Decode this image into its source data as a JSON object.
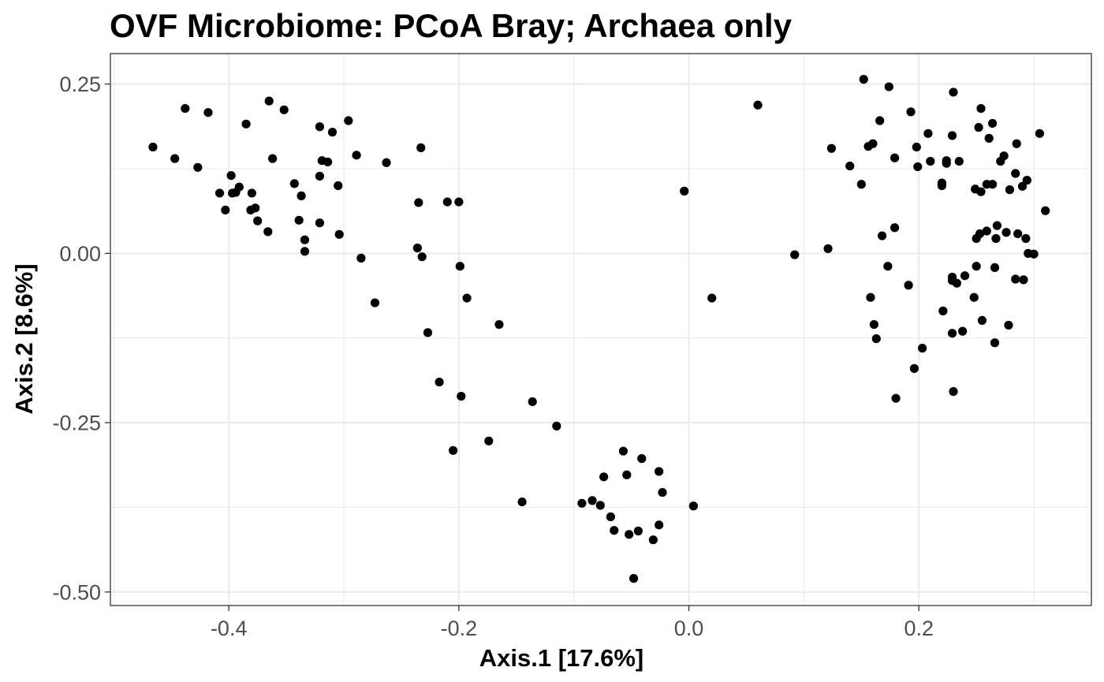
{
  "chart_data": {
    "type": "scatter",
    "title": "OVF Microbiome: PCoA Bray; Archaea only",
    "xlabel": "Axis.1   [17.6%]",
    "ylabel": "Axis.2   [8.6%]",
    "xlim": [
      -0.503,
      0.35
    ],
    "ylim": [
      -0.52,
      0.295
    ],
    "x_ticks": [
      -0.4,
      -0.2,
      0.0,
      0.2
    ],
    "x_tick_labels": [
      "-0.4",
      "-0.2",
      "0.0",
      "0.2"
    ],
    "y_ticks": [
      -0.5,
      -0.25,
      0.0,
      0.25
    ],
    "y_tick_labels": [
      "-0.50",
      "-0.25",
      "0.00",
      "0.25"
    ],
    "grid": true,
    "point_color": "#000000",
    "points": [
      [
        -0.466,
        0.157
      ],
      [
        -0.447,
        0.14
      ],
      [
        -0.438,
        0.214
      ],
      [
        -0.427,
        0.127
      ],
      [
        -0.418,
        0.208
      ],
      [
        -0.408,
        0.089
      ],
      [
        -0.403,
        0.064
      ],
      [
        -0.398,
        0.115
      ],
      [
        -0.397,
        0.089
      ],
      [
        -0.394,
        0.09
      ],
      [
        -0.391,
        0.098
      ],
      [
        -0.385,
        0.191
      ],
      [
        -0.381,
        0.064
      ],
      [
        -0.38,
        0.089
      ],
      [
        -0.377,
        0.067
      ],
      [
        -0.375,
        0.048
      ],
      [
        -0.366,
        0.032
      ],
      [
        -0.365,
        0.225
      ],
      [
        -0.362,
        0.14
      ],
      [
        -0.352,
        0.212
      ],
      [
        -0.343,
        0.103
      ],
      [
        -0.339,
        0.049
      ],
      [
        -0.337,
        0.085
      ],
      [
        -0.334,
        0.02
      ],
      [
        -0.334,
        0.003
      ],
      [
        -0.321,
        0.187
      ],
      [
        -0.321,
        0.114
      ],
      [
        -0.321,
        0.045
      ],
      [
        -0.319,
        0.137
      ],
      [
        -0.314,
        0.135
      ],
      [
        -0.31,
        0.179
      ],
      [
        -0.305,
        0.1
      ],
      [
        -0.304,
        0.028
      ],
      [
        -0.296,
        0.196
      ],
      [
        -0.289,
        0.145
      ],
      [
        -0.285,
        -0.007
      ],
      [
        -0.273,
        -0.073
      ],
      [
        -0.263,
        0.134
      ],
      [
        -0.236,
        0.008
      ],
      [
        -0.235,
        0.075
      ],
      [
        -0.233,
        0.156
      ],
      [
        -0.232,
        -0.005
      ],
      [
        -0.227,
        -0.117
      ],
      [
        -0.217,
        -0.19
      ],
      [
        -0.21,
        0.076
      ],
      [
        -0.205,
        -0.291
      ],
      [
        -0.2,
        0.076
      ],
      [
        -0.199,
        -0.019
      ],
      [
        -0.198,
        -0.211
      ],
      [
        -0.193,
        -0.066
      ],
      [
        -0.174,
        -0.277
      ],
      [
        -0.165,
        -0.105
      ],
      [
        -0.145,
        -0.367
      ],
      [
        -0.136,
        -0.219
      ],
      [
        -0.115,
        -0.255
      ],
      [
        -0.093,
        -0.369
      ],
      [
        -0.084,
        -0.365
      ],
      [
        -0.077,
        -0.372
      ],
      [
        -0.074,
        -0.33
      ],
      [
        -0.068,
        -0.389
      ],
      [
        -0.065,
        -0.409
      ],
      [
        -0.057,
        -0.292
      ],
      [
        -0.054,
        -0.327
      ],
      [
        -0.052,
        -0.415
      ],
      [
        -0.048,
        -0.48
      ],
      [
        -0.044,
        -0.41
      ],
      [
        -0.041,
        -0.303
      ],
      [
        -0.031,
        -0.423
      ],
      [
        -0.026,
        -0.322
      ],
      [
        -0.026,
        -0.401
      ],
      [
        -0.023,
        -0.353
      ],
      [
        -0.004,
        0.092
      ],
      [
        0.004,
        -0.373
      ],
      [
        0.02,
        -0.066
      ],
      [
        0.06,
        0.219
      ],
      [
        0.092,
        -0.002
      ],
      [
        0.121,
        0.007
      ],
      [
        0.124,
        0.155
      ],
      [
        0.14,
        0.129
      ],
      [
        0.15,
        0.102
      ],
      [
        0.152,
        0.257
      ],
      [
        0.156,
        0.158
      ],
      [
        0.158,
        -0.065
      ],
      [
        0.16,
        0.162
      ],
      [
        0.161,
        -0.105
      ],
      [
        0.163,
        -0.126
      ],
      [
        0.166,
        0.196
      ],
      [
        0.168,
        0.026
      ],
      [
        0.173,
        -0.019
      ],
      [
        0.174,
        0.246
      ],
      [
        0.179,
        0.038
      ],
      [
        0.179,
        0.141
      ],
      [
        0.18,
        -0.214
      ],
      [
        0.191,
        -0.047
      ],
      [
        0.193,
        0.209
      ],
      [
        0.196,
        -0.17
      ],
      [
        0.198,
        0.157
      ],
      [
        0.199,
        0.128
      ],
      [
        0.203,
        -0.14
      ],
      [
        0.208,
        0.177
      ],
      [
        0.21,
        0.136
      ],
      [
        0.22,
        0.104
      ],
      [
        0.22,
        0.1
      ],
      [
        0.221,
        -0.085
      ],
      [
        0.224,
        0.137
      ],
      [
        0.224,
        0.133
      ],
      [
        0.229,
        0.174
      ],
      [
        0.229,
        -0.118
      ],
      [
        0.229,
        -0.035
      ],
      [
        0.229,
        -0.04
      ],
      [
        0.23,
        0.238
      ],
      [
        0.23,
        -0.204
      ],
      [
        0.233,
        -0.044
      ],
      [
        0.235,
        0.136
      ],
      [
        0.238,
        -0.115
      ],
      [
        0.24,
        -0.033
      ],
      [
        0.248,
        -0.065
      ],
      [
        0.249,
        0.095
      ],
      [
        0.25,
        -0.019
      ],
      [
        0.25,
        0.022
      ],
      [
        0.252,
        0.186
      ],
      [
        0.253,
        0.029
      ],
      [
        0.254,
        0.214
      ],
      [
        0.254,
        0.091
      ],
      [
        0.255,
        -0.099
      ],
      [
        0.259,
        0.033
      ],
      [
        0.259,
        0.102
      ],
      [
        0.261,
        0.17
      ],
      [
        0.264,
        0.102
      ],
      [
        0.264,
        0.192
      ],
      [
        0.266,
        -0.132
      ],
      [
        0.266,
        -0.021
      ],
      [
        0.267,
        0.022
      ],
      [
        0.268,
        0.041
      ],
      [
        0.271,
        0.136
      ],
      [
        0.274,
        0.144
      ],
      [
        0.276,
        0.031
      ],
      [
        0.278,
        -0.106
      ],
      [
        0.279,
        0.094
      ],
      [
        0.284,
        -0.038
      ],
      [
        0.284,
        0.118
      ],
      [
        0.285,
        0.162
      ],
      [
        0.286,
        0.029
      ],
      [
        0.29,
        0.099
      ],
      [
        0.291,
        -0.039
      ],
      [
        0.293,
        0.022
      ],
      [
        0.294,
        0.108
      ],
      [
        0.295,
        0.0
      ],
      [
        0.3,
        -0.001
      ],
      [
        0.305,
        0.177
      ],
      [
        0.31,
        0.063
      ]
    ]
  }
}
